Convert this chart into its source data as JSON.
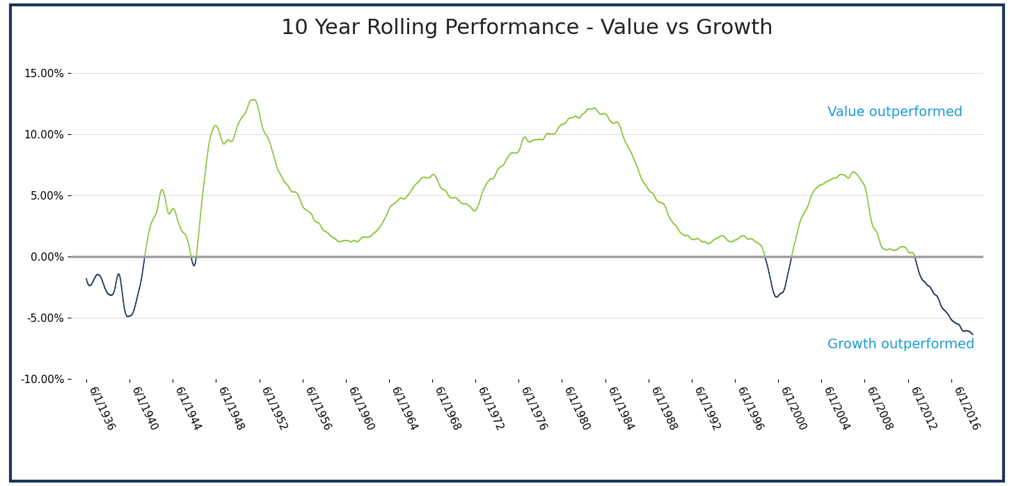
{
  "title": "10 Year Rolling Performance - Value vs Growth",
  "title_fontsize": 22,
  "value_outperformed_label": "Value outperformed",
  "growth_outperformed_label": "Growth outperformed",
  "annotation_color": "#1B9CD4",
  "positive_color": "#8DC63F",
  "negative_color": "#1C3557",
  "zero_line_color": "#A0A0A0",
  "background_color": "#FFFFFF",
  "border_color": "#1C3557",
  "ylim": [
    -0.1,
    0.17
  ],
  "yticks": [
    -0.1,
    -0.05,
    0.0,
    0.05,
    0.1,
    0.15
  ],
  "ytick_labels": [
    "-10.00%",
    "-5.00%",
    "0.00%",
    "5.00%",
    "10.00%",
    "15.00%"
  ],
  "xlabel_rotation": -65,
  "tick_fontsize": 11,
  "annotation_fontsize": 14
}
